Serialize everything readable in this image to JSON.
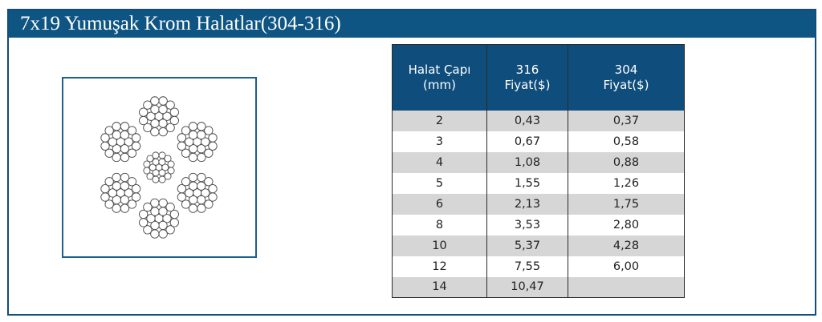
{
  "title": "7x19 Yumuşak Krom Halatlar(304-316)",
  "colors": {
    "header_bg": "#0f5583",
    "table_header_bg": "#0f4d7c",
    "row_shade": "#d6d6d6"
  },
  "diagram": {
    "icon": "wire-rope-7x19-cross-section-icon",
    "strand_count": 7,
    "wires_per_strand": 19
  },
  "table": {
    "headers": [
      {
        "line1": "Halat Çapı",
        "line2": "(mm)"
      },
      {
        "line1": "316",
        "line2": "Fiyat($)"
      },
      {
        "line1": "304",
        "line2": "Fiyat($)"
      }
    ],
    "rows": [
      [
        "2",
        "0,43",
        "0,37"
      ],
      [
        "3",
        "0,67",
        "0,58"
      ],
      [
        "4",
        "1,08",
        "0,88"
      ],
      [
        "5",
        "1,55",
        "1,26"
      ],
      [
        "6",
        "2,13",
        "1,75"
      ],
      [
        "8",
        "3,53",
        "2,80"
      ],
      [
        "10",
        "5,37",
        "4,28"
      ],
      [
        "12",
        "7,55",
        "6,00"
      ],
      [
        "14",
        "10,47",
        ""
      ]
    ]
  }
}
